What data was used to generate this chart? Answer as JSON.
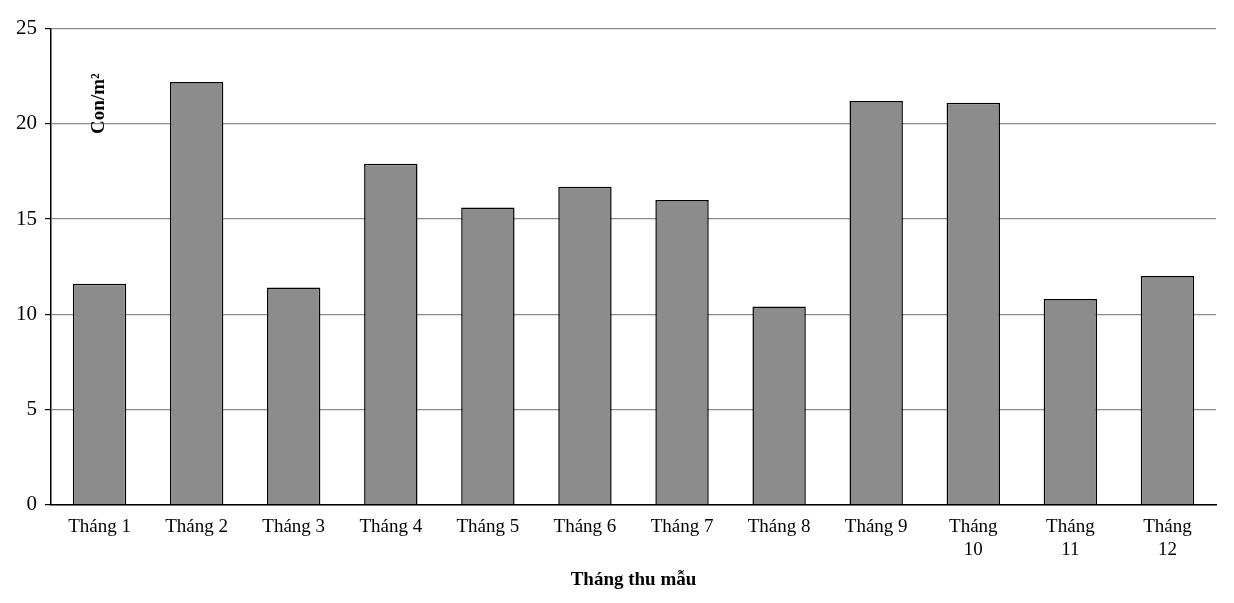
{
  "chart_data": {
    "type": "bar",
    "xlabel": "Tháng thu mẫu",
    "ylabel": "Con/m²",
    "categories": [
      "Tháng 1",
      "Tháng 2",
      "Tháng 3",
      "Tháng 4",
      "Tháng 5",
      "Tháng 6",
      "Tháng 7",
      "Tháng 8",
      "Tháng 9",
      "Tháng 10",
      "Tháng 11",
      "Tháng 12"
    ],
    "values": [
      11.6,
      22.2,
      11.4,
      17.9,
      15.6,
      16.7,
      16.0,
      10.4,
      21.2,
      21.1,
      10.8,
      12.0
    ],
    "color": "#8c8c8c",
    "ylim": [
      0,
      25
    ],
    "yticks": [
      0,
      5,
      10,
      15,
      20,
      25
    ],
    "grid": "y"
  }
}
